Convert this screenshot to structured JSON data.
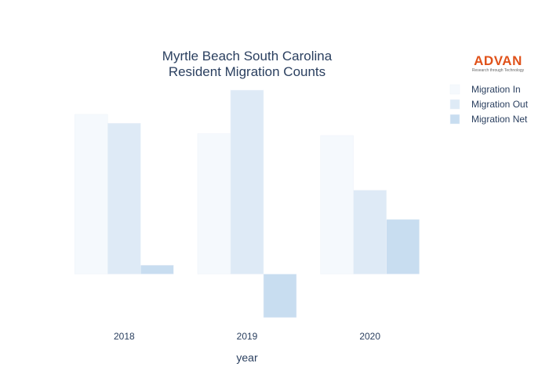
{
  "logo": {
    "name": "ADVAN",
    "tagline": "Research through Technology",
    "color": "#e0521a"
  },
  "chart_data": {
    "type": "bar",
    "title": [
      "Myrtle Beach South Carolina",
      "Resident Migration Counts"
    ],
    "xlabel": "year",
    "ylabel": "",
    "categories": [
      "2018",
      "2019",
      "2020"
    ],
    "ylim": [
      -1130,
      4780
    ],
    "y_gridlines": false,
    "y_tick_labels_shown": false,
    "series": [
      {
        "name": "Migration In",
        "color": "#f5f9fd",
        "values": [
          4150,
          3650,
          3600
        ]
      },
      {
        "name": "Migration Out",
        "color": "#deeaf6",
        "values": [
          3920,
          4780,
          2180
        ]
      },
      {
        "name": "Migration Net",
        "color": "#c8ddf0",
        "values": [
          230,
          -1130,
          1420
        ]
      }
    ],
    "legend_position": "top-right"
  }
}
